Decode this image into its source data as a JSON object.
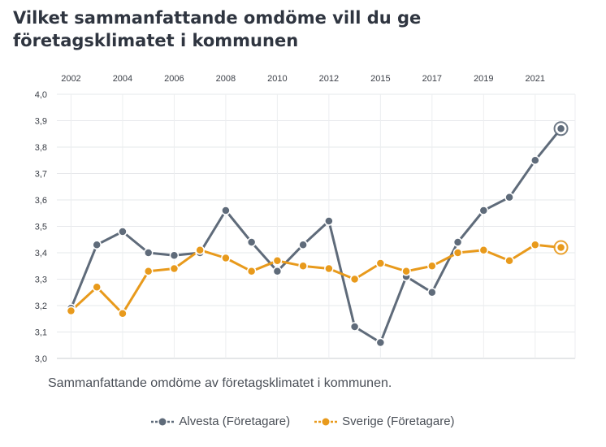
{
  "chart_data": {
    "type": "line",
    "title": "Vilket sammanfattande omdöme vill du ge företagsklimatet i kommunen",
    "subtitle": "Sammanfattande omdöme av företagsklimatet i kommunen.",
    "x": [
      2002,
      2003,
      2004,
      2005,
      2006,
      2007,
      2008,
      2009,
      2010,
      2011,
      2012,
      2013,
      2015,
      2016,
      2017,
      2018,
      2019,
      2020,
      2021,
      2022
    ],
    "x_tick_labels": [
      "2002",
      "2004",
      "2006",
      "2008",
      "2010",
      "2012",
      "2015",
      "2017",
      "2019",
      "2021"
    ],
    "y_tick_labels": [
      "3,0",
      "3,1",
      "3,2",
      "3,3",
      "3,4",
      "3,5",
      "3,6",
      "3,7",
      "3,8",
      "3,9",
      "4,0"
    ],
    "ylim": [
      3.0,
      4.0
    ],
    "grid": true,
    "legend_position": "bottom",
    "series": [
      {
        "name": "Alvesta (Företagare)",
        "color": "#5f6b7a",
        "values": [
          3.19,
          3.43,
          3.48,
          3.4,
          3.39,
          3.4,
          3.56,
          3.44,
          3.33,
          3.43,
          3.52,
          3.12,
          3.06,
          3.31,
          3.25,
          3.44,
          3.56,
          3.61,
          3.75,
          3.87
        ]
      },
      {
        "name": "Sverige (Företagare)",
        "color": "#e89a1c",
        "values": [
          3.18,
          3.27,
          3.17,
          3.33,
          3.34,
          3.41,
          3.38,
          3.33,
          3.37,
          3.35,
          3.34,
          3.3,
          3.36,
          3.33,
          3.35,
          3.4,
          3.41,
          3.37,
          3.43,
          3.42
        ]
      }
    ]
  }
}
